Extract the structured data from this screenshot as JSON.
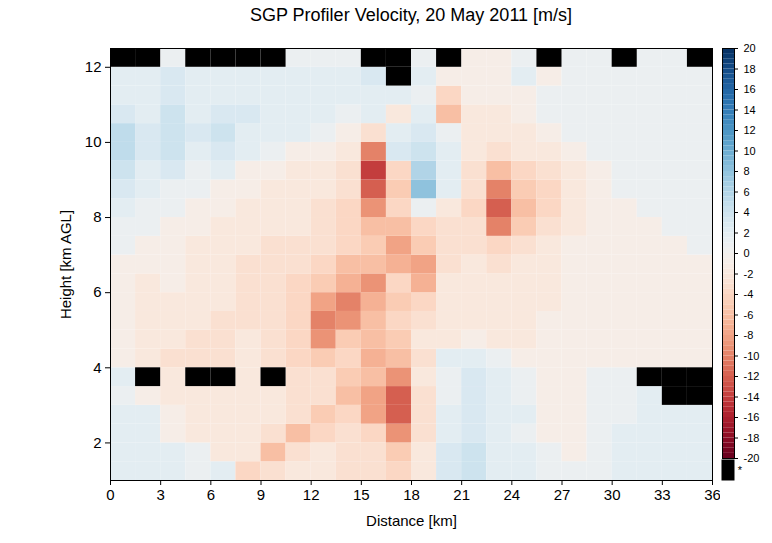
{
  "chart_data": {
    "type": "heatmap",
    "title": "SGP Profiler Velocity, 20 May 2011 [m/s]",
    "x_label": "Distance [km]",
    "y_label": "Height [km AGL]",
    "xlim": [
      0,
      36
    ],
    "ylim": [
      1,
      12.5
    ],
    "xticks": [
      0,
      3,
      6,
      9,
      12,
      15,
      18,
      21,
      24,
      27,
      30,
      33,
      36
    ],
    "yticks": [
      2,
      4,
      6,
      8,
      10,
      12
    ],
    "x_edges": [
      0,
      1.5,
      3,
      4.5,
      6,
      7.5,
      9,
      10.5,
      12,
      13.5,
      15,
      16.5,
      18,
      19.5,
      21,
      22.5,
      24,
      25.5,
      27,
      28.5,
      30,
      31.5,
      33,
      34.5,
      36
    ],
    "y_edges": [
      1,
      1.5,
      2,
      2.5,
      3,
      3.5,
      4,
      4.5,
      5,
      5.5,
      6,
      6.5,
      7,
      7.5,
      8,
      8.5,
      9,
      9.5,
      10,
      10.5,
      11,
      11.5,
      12,
      12.5
    ],
    "values": [
      [
        2,
        2,
        2,
        1,
        2,
        -4,
        -3,
        -2,
        -2,
        -3,
        -3,
        -4,
        -2,
        3,
        4,
        2,
        2,
        1,
        1,
        1,
        2,
        2,
        2,
        2
      ],
      [
        2,
        2,
        2,
        1,
        -2,
        -2,
        -6,
        -3,
        -2,
        -3,
        -3,
        -5,
        -2,
        3,
        4,
        2,
        2,
        1,
        -1,
        1,
        2,
        2,
        2,
        2
      ],
      [
        2,
        2,
        -1,
        -2,
        -2,
        -2,
        -3,
        -6,
        -4,
        -3,
        -4,
        -9,
        -3,
        2,
        3,
        2,
        1,
        -1,
        -1,
        1,
        2,
        2,
        2,
        2
      ],
      [
        2,
        2,
        -1,
        -2,
        -2,
        -2,
        -2,
        -3,
        -5,
        -4,
        -8,
        -12,
        -3,
        2,
        3,
        2,
        2,
        -1,
        -1,
        1,
        1,
        2,
        2,
        2
      ],
      [
        1,
        -1,
        -2,
        -2,
        -2,
        -2,
        -2,
        -3,
        -3,
        -6,
        -8,
        -12,
        -3,
        1,
        3,
        2,
        1,
        -1,
        -1,
        1,
        1,
        2,
        null,
        null
      ],
      [
        2,
        null,
        -2,
        null,
        null,
        -2,
        null,
        -3,
        -3,
        -5,
        -6,
        -9,
        -2,
        1,
        3,
        2,
        1,
        -1,
        -1,
        1,
        1,
        null,
        null,
        null
      ],
      [
        -1,
        -2,
        -3,
        -3,
        -3,
        -2,
        -3,
        -4,
        -5,
        -4,
        -7,
        -6,
        -3,
        2,
        2,
        1,
        -1,
        -1,
        -1,
        -1,
        -1,
        -1,
        -1,
        -1
      ],
      [
        -1,
        -2,
        -2,
        -3,
        -3,
        -2,
        -3,
        -4,
        -9,
        -5,
        -6,
        -5,
        -2,
        -2,
        -1,
        -2,
        -2,
        -1,
        -1,
        -1,
        -1,
        -1,
        -1,
        -1
      ],
      [
        -1,
        -2,
        -2,
        -2,
        -3,
        -3,
        -3,
        -4,
        -10,
        -9,
        -6,
        -4,
        -3,
        -2,
        -2,
        -2,
        -2,
        -1,
        -1,
        -1,
        -1,
        -1,
        -1,
        -1
      ],
      [
        -1,
        -2,
        -2,
        -2,
        -2,
        -3,
        -3,
        -4,
        -8,
        -10,
        -7,
        -5,
        -4,
        -2,
        -2,
        -2,
        -2,
        -2,
        -1,
        -1,
        -1,
        -1,
        -1,
        -1
      ],
      [
        -1,
        -2,
        -1,
        -2,
        -2,
        -3,
        -3,
        -4,
        -5,
        -7,
        -9,
        -4,
        -7,
        -2,
        -2,
        -2,
        -2,
        -2,
        -1,
        -1,
        -1,
        -1,
        -1,
        -1
      ],
      [
        -1,
        -1,
        -1,
        -2,
        -2,
        -3,
        -3,
        -3,
        -4,
        -6,
        -6,
        -7,
        -8,
        -3,
        -2,
        -3,
        -2,
        -2,
        -1,
        -1,
        -1,
        -1,
        -1,
        -1
      ],
      [
        1,
        -1,
        -1,
        -2,
        -2,
        -2,
        -3,
        -3,
        -3,
        -4,
        -5,
        -8,
        -5,
        -3,
        -3,
        -4,
        -3,
        -2,
        -1,
        -1,
        -1,
        -1,
        -1,
        1
      ],
      [
        1,
        1,
        -1,
        -1,
        -2,
        -2,
        -2,
        -2,
        -3,
        -4,
        -6,
        -6,
        -4,
        -3,
        -3,
        -10,
        -5,
        -3,
        -2,
        -1,
        -1,
        -1,
        1,
        1
      ],
      [
        2,
        1,
        1,
        -1,
        -1,
        -2,
        -2,
        -2,
        -3,
        -4,
        -9,
        -4,
        1,
        -2,
        -4,
        -12,
        -6,
        -4,
        -2,
        -1,
        -1,
        1,
        1,
        1
      ],
      [
        3,
        2,
        1,
        1,
        -1,
        -1,
        -2,
        -2,
        -2,
        -3,
        -12,
        -5,
        8,
        2,
        -3,
        -10,
        -5,
        -4,
        -2,
        -1,
        1,
        1,
        1,
        1
      ],
      [
        4,
        2,
        3,
        1,
        2,
        -1,
        -1,
        -2,
        -2,
        -3,
        -14,
        -4,
        6,
        2,
        -3,
        -6,
        -4,
        -3,
        -2,
        -1,
        1,
        1,
        1,
        1
      ],
      [
        5,
        3,
        4,
        2,
        3,
        2,
        1,
        -1,
        -1,
        -2,
        -10,
        3,
        4,
        2,
        -2,
        -3,
        -2,
        -2,
        -1,
        1,
        1,
        1,
        1,
        1
      ],
      [
        5,
        3,
        4,
        3,
        4,
        2,
        2,
        2,
        1,
        -1,
        -3,
        2,
        3,
        1,
        -2,
        -2,
        -2,
        -1,
        1,
        1,
        1,
        1,
        1,
        1
      ],
      [
        3,
        2,
        4,
        2,
        3,
        3,
        2,
        2,
        2,
        1,
        2,
        -2,
        2,
        -6,
        -2,
        -2,
        -1,
        1,
        1,
        1,
        1,
        1,
        1,
        1
      ],
      [
        2,
        2,
        3,
        2,
        2,
        2,
        2,
        2,
        2,
        2,
        2,
        2,
        1,
        -4,
        -1,
        -1,
        -1,
        1,
        1,
        1,
        1,
        1,
        1,
        1
      ],
      [
        2,
        2,
        3,
        2,
        2,
        2,
        2,
        2,
        2,
        2,
        3,
        null,
        2,
        -1,
        -1,
        -1,
        2,
        -1,
        1,
        1,
        1,
        1,
        1,
        1
      ],
      [
        null,
        null,
        1,
        null,
        null,
        null,
        null,
        1,
        1,
        1,
        null,
        null,
        1,
        null,
        -1,
        -1,
        1,
        null,
        1,
        1,
        null,
        1,
        1,
        null
      ]
    ],
    "colorbar": {
      "range": [
        -20,
        20
      ],
      "ticks": [
        20,
        18,
        16,
        14,
        12,
        10,
        8,
        6,
        4,
        2,
        0,
        -2,
        -4,
        -6,
        -8,
        -10,
        -12,
        -14,
        -16,
        -18,
        -20
      ],
      "missing_label": "*",
      "missing_color": "#000000"
    }
  }
}
